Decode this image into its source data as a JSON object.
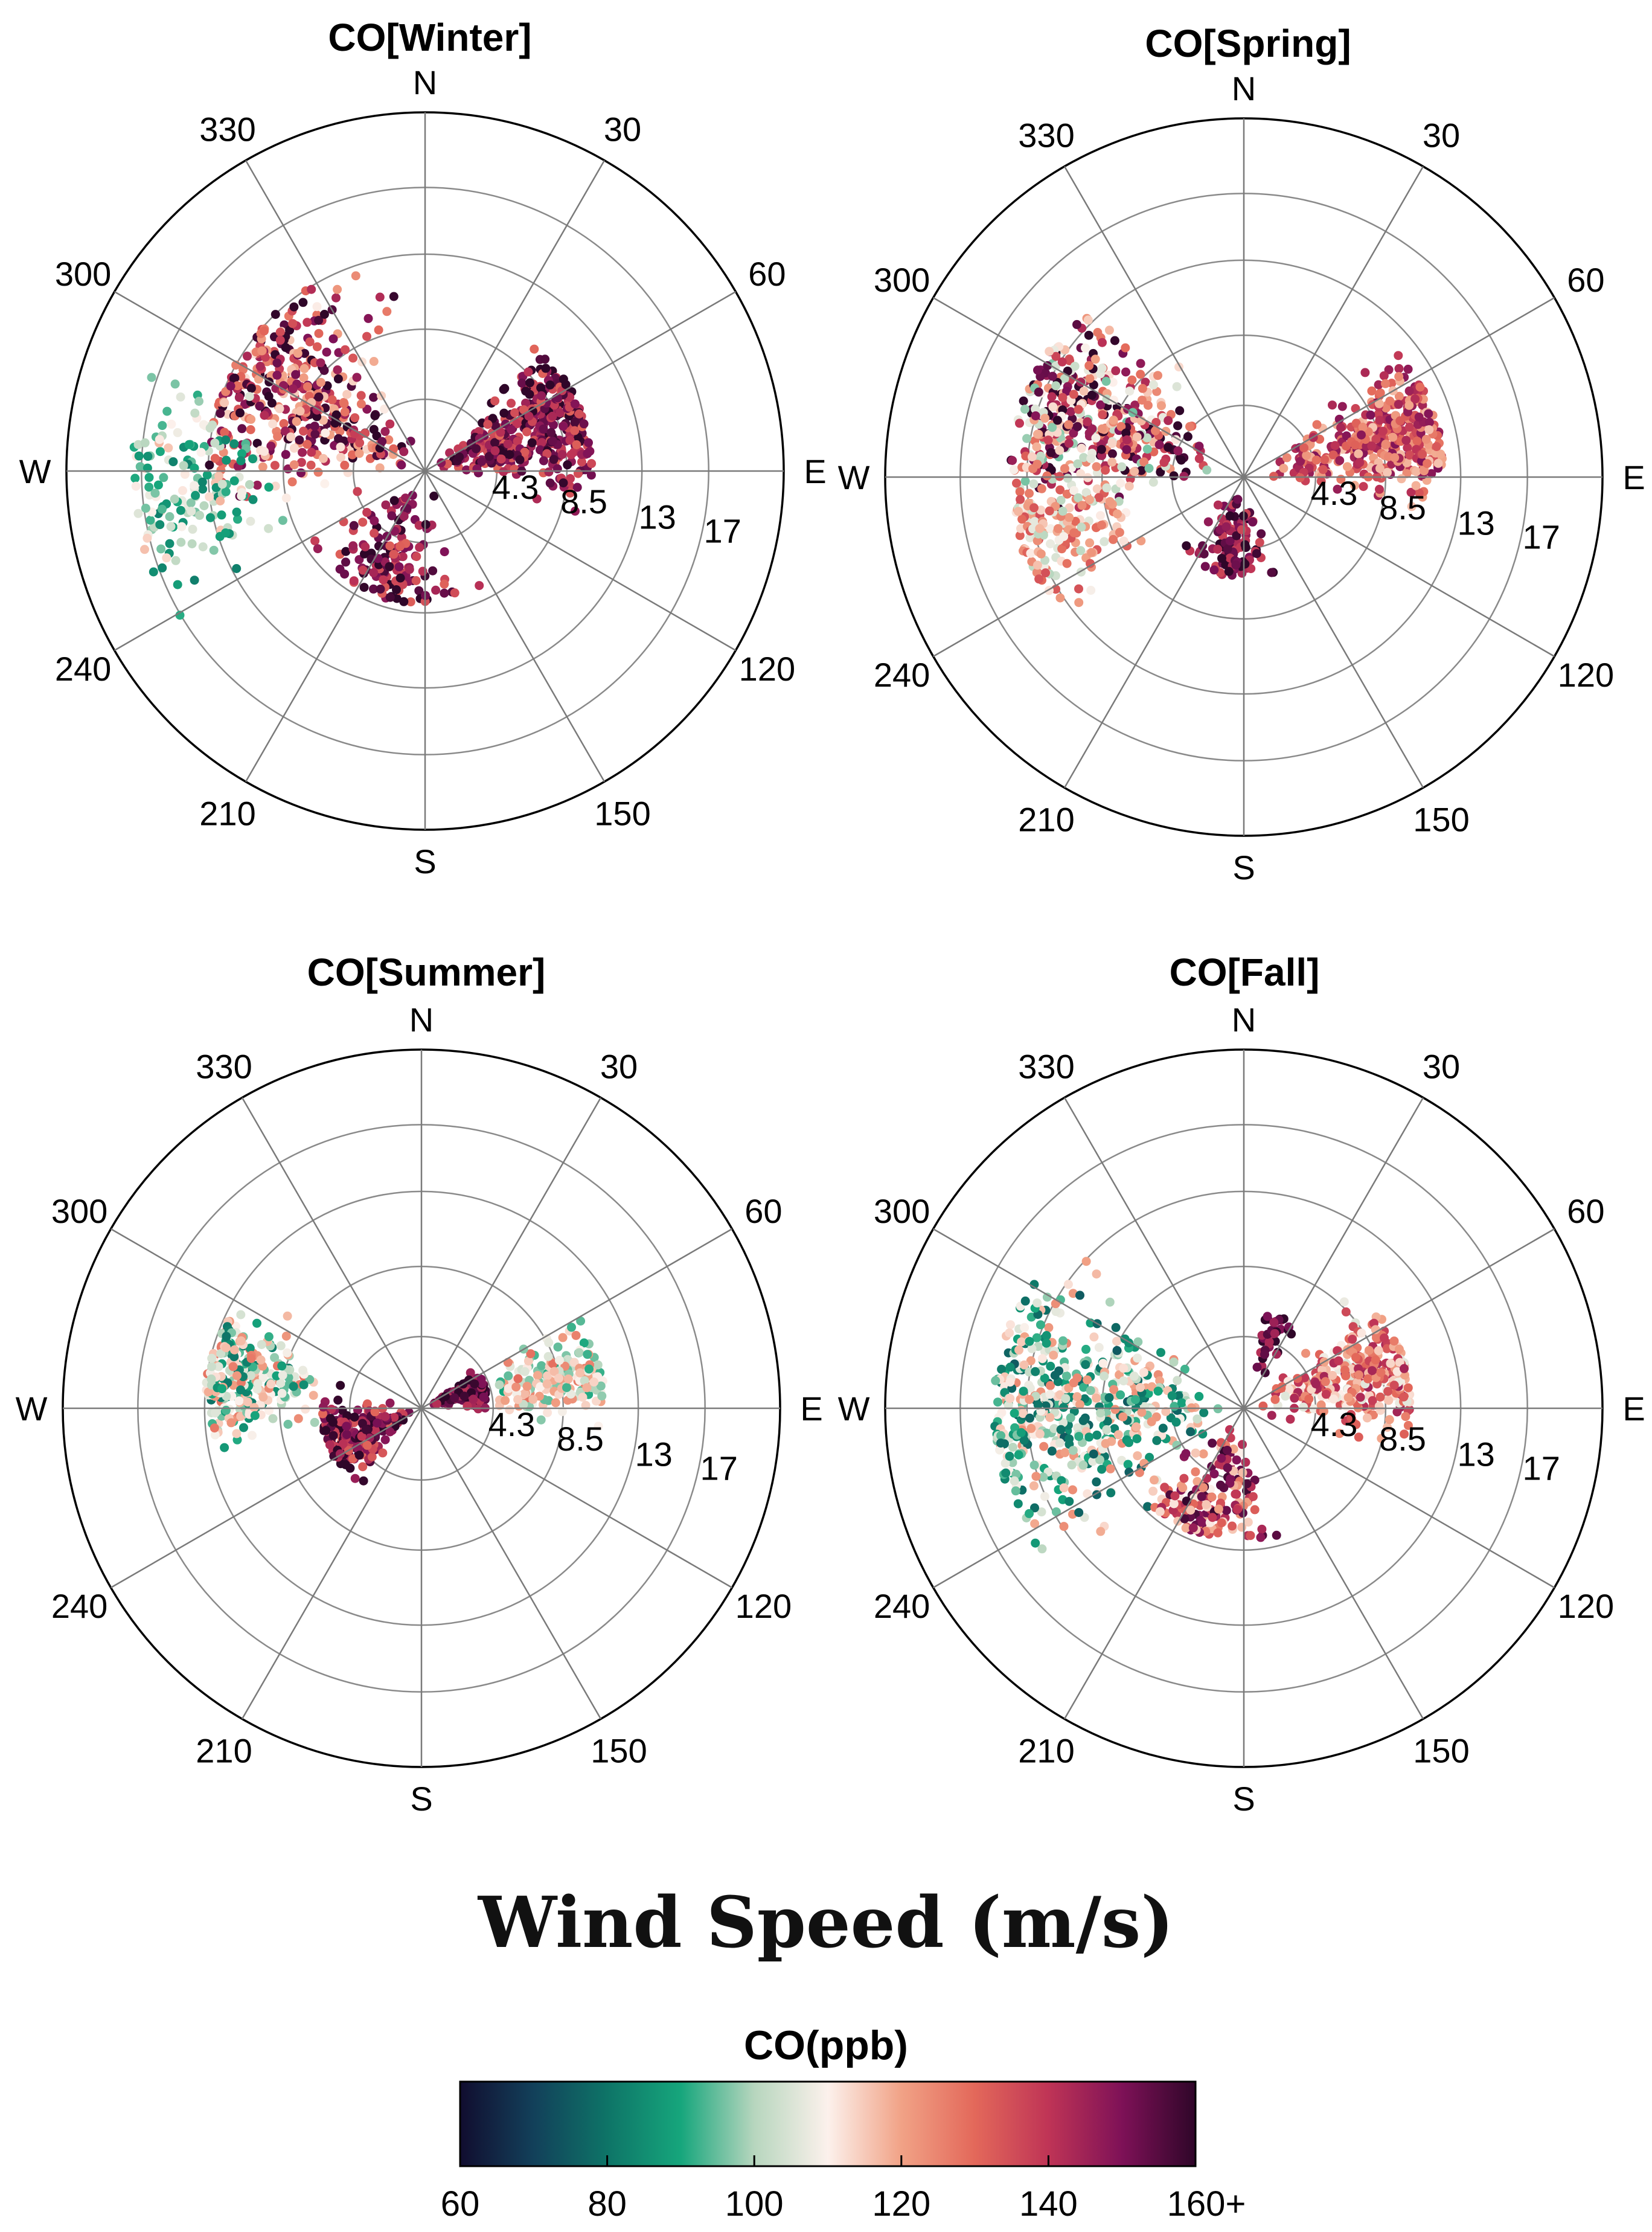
{
  "chart_data": {
    "type": "scatter",
    "projection": "polar",
    "supertitle": "Wind Speed (m/s)",
    "panels": [
      {
        "title": "CO[Winter]",
        "rlim": [
          0,
          21.5
        ],
        "radial_ticks": [
          "4.3",
          "8.5",
          "13",
          "17"
        ],
        "radial_tick_values": [
          4.3,
          8.5,
          13,
          17
        ],
        "directions": [
          "N",
          "E",
          "S",
          "W"
        ],
        "angle_ticks": [
          "30",
          "60",
          "120",
          "150",
          "210",
          "240",
          "300",
          "330"
        ],
        "clusters": [
          {
            "dir_deg": 70,
            "dir_spread": 22,
            "speed_min": 0.5,
            "speed_max": 10,
            "co_min": 130,
            "co_max": 165,
            "n": 380
          },
          {
            "dir_deg": 300,
            "dir_spread": 30,
            "speed_min": 1,
            "speed_max": 13,
            "co_min": 110,
            "co_max": 165,
            "n": 420
          },
          {
            "dir_deg": 265,
            "dir_spread": 18,
            "speed_min": 8,
            "speed_max": 17.5,
            "co_min": 82,
            "co_max": 118,
            "n": 170
          },
          {
            "dir_deg": 200,
            "dir_spread": 28,
            "speed_min": 1,
            "speed_max": 8,
            "co_min": 130,
            "co_max": 165,
            "n": 150
          }
        ]
      },
      {
        "title": "CO[Spring]",
        "rlim": [
          0,
          21.5
        ],
        "radial_ticks": [
          "4.3",
          "8.5",
          "13",
          "17"
        ],
        "radial_tick_values": [
          4.3,
          8.5,
          13,
          17
        ],
        "directions": [
          "N",
          "E",
          "S",
          "W"
        ],
        "angle_ticks": [
          "30",
          "60",
          "120",
          "150",
          "210",
          "240",
          "300",
          "330"
        ],
        "clusters": [
          {
            "dir_deg": 75,
            "dir_spread": 18,
            "speed_min": 1,
            "speed_max": 12,
            "co_min": 115,
            "co_max": 150,
            "n": 380
          },
          {
            "dir_deg": 290,
            "dir_spread": 24,
            "speed_min": 2,
            "speed_max": 14,
            "co_min": 95,
            "co_max": 165,
            "n": 420
          },
          {
            "dir_deg": 255,
            "dir_spread": 16,
            "speed_min": 6,
            "speed_max": 14,
            "co_min": 100,
            "co_max": 135,
            "n": 170
          },
          {
            "dir_deg": 190,
            "dir_spread": 22,
            "speed_min": 1,
            "speed_max": 6,
            "co_min": 135,
            "co_max": 165,
            "n": 110
          }
        ]
      },
      {
        "title": "CO[Summer]",
        "rlim": [
          0,
          21.5
        ],
        "radial_ticks": [
          "4.3",
          "8.5",
          "13",
          "17"
        ],
        "radial_tick_values": [
          4.3,
          8.5,
          13,
          17
        ],
        "directions": [
          "N",
          "E",
          "S",
          "W"
        ],
        "angle_ticks": [
          "30",
          "60",
          "120",
          "150",
          "210",
          "240",
          "300",
          "330"
        ],
        "clusters": [
          {
            "dir_deg": 72,
            "dir_spread": 12,
            "speed_min": 0.5,
            "speed_max": 4,
            "co_min": 140,
            "co_max": 165,
            "n": 140
          },
          {
            "dir_deg": 78,
            "dir_spread": 14,
            "speed_min": 4,
            "speed_max": 11,
            "co_min": 90,
            "co_max": 130,
            "n": 180
          },
          {
            "dir_deg": 250,
            "dir_spread": 22,
            "speed_min": 0.5,
            "speed_max": 6,
            "co_min": 130,
            "co_max": 165,
            "n": 230
          },
          {
            "dir_deg": 280,
            "dir_spread": 16,
            "speed_min": 6,
            "speed_max": 13,
            "co_min": 80,
            "co_max": 130,
            "n": 260
          }
        ]
      },
      {
        "title": "CO[Fall]",
        "rlim": [
          0,
          21.5
        ],
        "radial_ticks": [
          "4.3",
          "8.5",
          "13",
          "17"
        ],
        "radial_tick_values": [
          4.3,
          8.5,
          13,
          17
        ],
        "directions": [
          "N",
          "E",
          "S",
          "W"
        ],
        "angle_ticks": [
          "30",
          "60",
          "120",
          "150",
          "210",
          "240",
          "300",
          "330"
        ],
        "clusters": [
          {
            "dir_deg": 75,
            "dir_spread": 20,
            "speed_min": 1,
            "speed_max": 10,
            "co_min": 105,
            "co_max": 145,
            "n": 330
          },
          {
            "dir_deg": 270,
            "dir_spread": 30,
            "speed_min": 1,
            "speed_max": 15,
            "co_min": 75,
            "co_max": 125,
            "n": 520
          },
          {
            "dir_deg": 200,
            "dir_spread": 28,
            "speed_min": 1,
            "speed_max": 8,
            "co_min": 110,
            "co_max": 160,
            "n": 170
          },
          {
            "dir_deg": 20,
            "dir_spread": 12,
            "speed_min": 2,
            "speed_max": 6,
            "co_min": 140,
            "co_max": 165,
            "n": 35
          }
        ]
      }
    ],
    "colorbar": {
      "title": "CO(ppb)",
      "range": [
        60,
        160
      ],
      "tick_values": [
        60,
        80,
        100,
        120,
        140,
        160
      ],
      "tick_labels": [
        "60",
        "80",
        "100",
        "120",
        "140",
        "160+"
      ],
      "colormap_stops": [
        {
          "value": 60,
          "color": "#110d2f"
        },
        {
          "value": 70,
          "color": "#12405a"
        },
        {
          "value": 80,
          "color": "#0e7467"
        },
        {
          "value": 90,
          "color": "#16a67c"
        },
        {
          "value": 100,
          "color": "#b7d6be"
        },
        {
          "value": 110,
          "color": "#fcf1ec"
        },
        {
          "value": 120,
          "color": "#f1a286"
        },
        {
          "value": 130,
          "color": "#e3685a"
        },
        {
          "value": 140,
          "color": "#bf3456"
        },
        {
          "value": 150,
          "color": "#7e1157"
        },
        {
          "value": 160,
          "color": "#2f0629"
        }
      ]
    }
  }
}
